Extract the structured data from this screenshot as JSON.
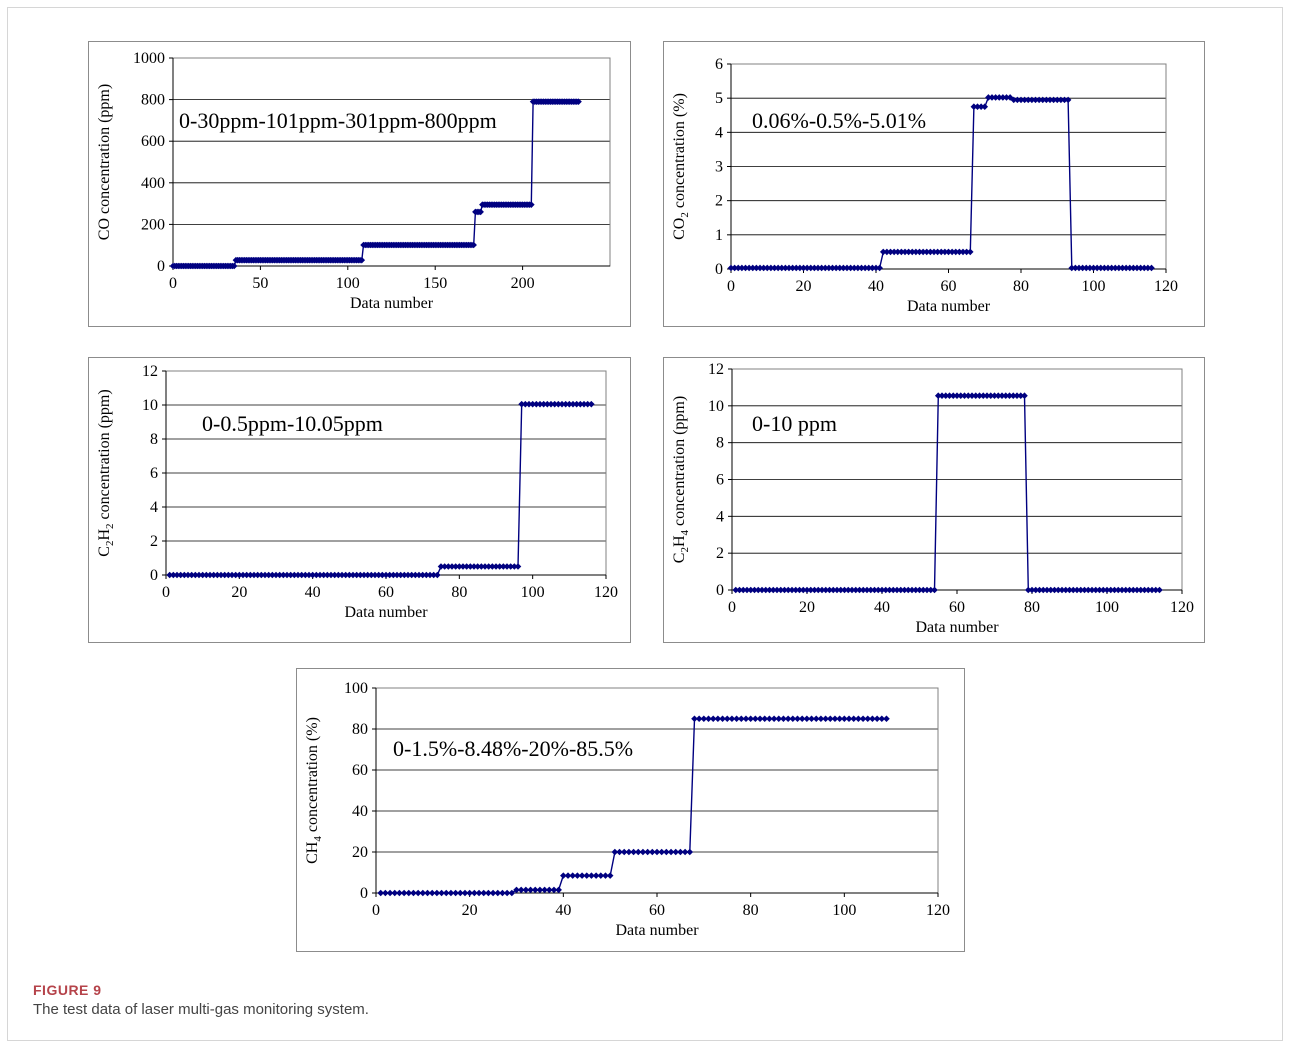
{
  "figure": {
    "label": "FIGURE 9",
    "caption": "The test data of laser multi-gas monitoring system."
  },
  "colors": {
    "series": "#000080",
    "axis": "#000000",
    "grid": "#000000"
  },
  "chart_data": [
    {
      "type": "line",
      "id": "co",
      "annotation": "0-30ppm-101ppm-301ppm-800ppm",
      "xlabel": "Data number",
      "ylabel": [
        {
          "t": "CO  concentration (ppm)"
        }
      ],
      "xlim": [
        0,
        250
      ],
      "ylim": [
        0,
        1000
      ],
      "xticks": [
        0,
        50,
        100,
        150,
        200
      ],
      "yticks": [
        0,
        200,
        400,
        600,
        800,
        1000
      ],
      "grid": true,
      "steps": [
        [
          0,
          35,
          0
        ],
        [
          36,
          108,
          28
        ],
        [
          109,
          172,
          101
        ],
        [
          173,
          176,
          260
        ],
        [
          177,
          205,
          295
        ],
        [
          206,
          232,
          790
        ]
      ]
    },
    {
      "type": "line",
      "id": "co2",
      "annotation": "0.06%-0.5%-5.01%",
      "xlabel": "Data number",
      "ylabel": [
        {
          "t": "CO"
        },
        {
          "t": "2",
          "sub": true
        },
        {
          "t": "  concentration (%)"
        }
      ],
      "xlim": [
        0,
        120
      ],
      "ylim": [
        0,
        6
      ],
      "xticks": [
        0,
        20,
        40,
        60,
        80,
        100,
        120
      ],
      "yticks": [
        0,
        1,
        2,
        3,
        4,
        5,
        6
      ],
      "grid": true,
      "steps": [
        [
          0,
          41,
          0.03
        ],
        [
          42,
          66,
          0.5
        ],
        [
          67,
          70,
          4.75
        ],
        [
          71,
          77,
          5.02
        ],
        [
          78,
          93,
          4.95
        ],
        [
          94,
          116,
          0.03
        ]
      ]
    },
    {
      "type": "line",
      "id": "c2h2",
      "annotation": "0-0.5ppm-10.05ppm",
      "xlabel": "Data number",
      "ylabel": [
        {
          "t": "C"
        },
        {
          "t": "2",
          "sub": true
        },
        {
          "t": "H"
        },
        {
          "t": "2",
          "sub": true
        },
        {
          "t": " concentration (ppm)"
        }
      ],
      "xlim": [
        0,
        120
      ],
      "ylim": [
        0,
        12
      ],
      "xticks": [
        0,
        20,
        40,
        60,
        80,
        100,
        120
      ],
      "yticks": [
        0,
        2,
        4,
        6,
        8,
        10,
        12
      ],
      "grid": true,
      "steps": [
        [
          1,
          74,
          0
        ],
        [
          75,
          96,
          0.5
        ],
        [
          97,
          116,
          10.05
        ]
      ]
    },
    {
      "type": "line",
      "id": "c2h4",
      "annotation": "0-10 ppm",
      "xlabel": "Data number",
      "ylabel": [
        {
          "t": "C"
        },
        {
          "t": "2",
          "sub": true
        },
        {
          "t": "H"
        },
        {
          "t": "4",
          "sub": true
        },
        {
          "t": " concentration (ppm)"
        }
      ],
      "xlim": [
        0,
        120
      ],
      "ylim": [
        0,
        12
      ],
      "xticks": [
        0,
        20,
        40,
        60,
        80,
        100,
        120
      ],
      "yticks": [
        0,
        2,
        4,
        6,
        8,
        10,
        12
      ],
      "grid": true,
      "steps": [
        [
          1,
          54,
          0
        ],
        [
          55,
          78,
          10.55
        ],
        [
          79,
          114,
          0
        ]
      ]
    },
    {
      "type": "line",
      "id": "ch4",
      "annotation": "0-1.5%-8.48%-20%-85.5%",
      "xlabel": "Data number",
      "ylabel": [
        {
          "t": "CH"
        },
        {
          "t": "4",
          "sub": true
        },
        {
          "t": " concentration (%)"
        }
      ],
      "xlim": [
        0,
        120
      ],
      "ylim": [
        0,
        100
      ],
      "xticks": [
        0,
        20,
        40,
        60,
        80,
        100,
        120
      ],
      "yticks": [
        0,
        20,
        40,
        60,
        80,
        100
      ],
      "grid": true,
      "steps": [
        [
          1,
          29,
          0
        ],
        [
          30,
          39,
          1.5
        ],
        [
          40,
          50,
          8.48
        ],
        [
          51,
          67,
          20
        ],
        [
          68,
          109,
          85
        ]
      ]
    }
  ]
}
